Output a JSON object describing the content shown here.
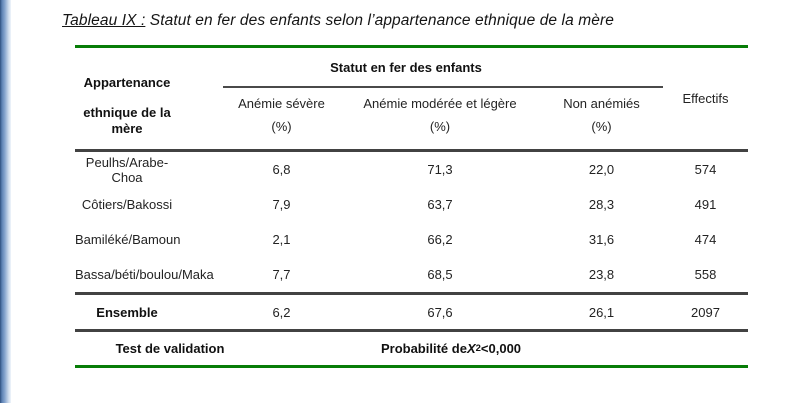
{
  "title": {
    "label": "Tableau IX :",
    "text": " Statut en fer des enfants selon l’appartenance ethnique de la mère"
  },
  "table": {
    "spanner": "Statut en fer des enfants",
    "row_header": {
      "line1": "Appartenance",
      "line2": "ethnique de la mère"
    },
    "columns": [
      {
        "label": "Anémie sévère",
        "unit": "(%)"
      },
      {
        "label": "Anémie modérée et légère",
        "unit": "(%)"
      },
      {
        "label": "Non anémiés",
        "unit": "(%)"
      }
    ],
    "effectifs_label": "Effectifs",
    "rows": [
      {
        "label": "Peulhs/Arabe-Choa",
        "severe": "6,8",
        "moderate": "71,3",
        "non_anemic": "22,0",
        "effectifs": "574"
      },
      {
        "label": "Côtiers/Bakossi",
        "severe": "7,9",
        "moderate": "63,7",
        "non_anemic": "28,3",
        "effectifs": "491"
      },
      {
        "label": "Bamiléké/Bamoun",
        "severe": "2,1",
        "moderate": "66,2",
        "non_anemic": "31,6",
        "effectifs": "474"
      },
      {
        "label": "Bassa/béti/boulou/Maka",
        "severe": "7,7",
        "moderate": "68,5",
        "non_anemic": "23,8",
        "effectifs": "558"
      }
    ],
    "total_row": {
      "label": "Ensemble",
      "severe": "6,2",
      "moderate": "67,6",
      "non_anemic": "26,1",
      "effectifs": "2097"
    },
    "validation_row": {
      "label": "Test de validation",
      "value_prefix": "Probabilité de ",
      "value_x": "X",
      "value_sup": "2",
      "value_suffix": " <0,000"
    }
  },
  "colors": {
    "accent_green": "#077d07",
    "rule_dark": "#424242",
    "edge_blue": "#5d82b4"
  }
}
